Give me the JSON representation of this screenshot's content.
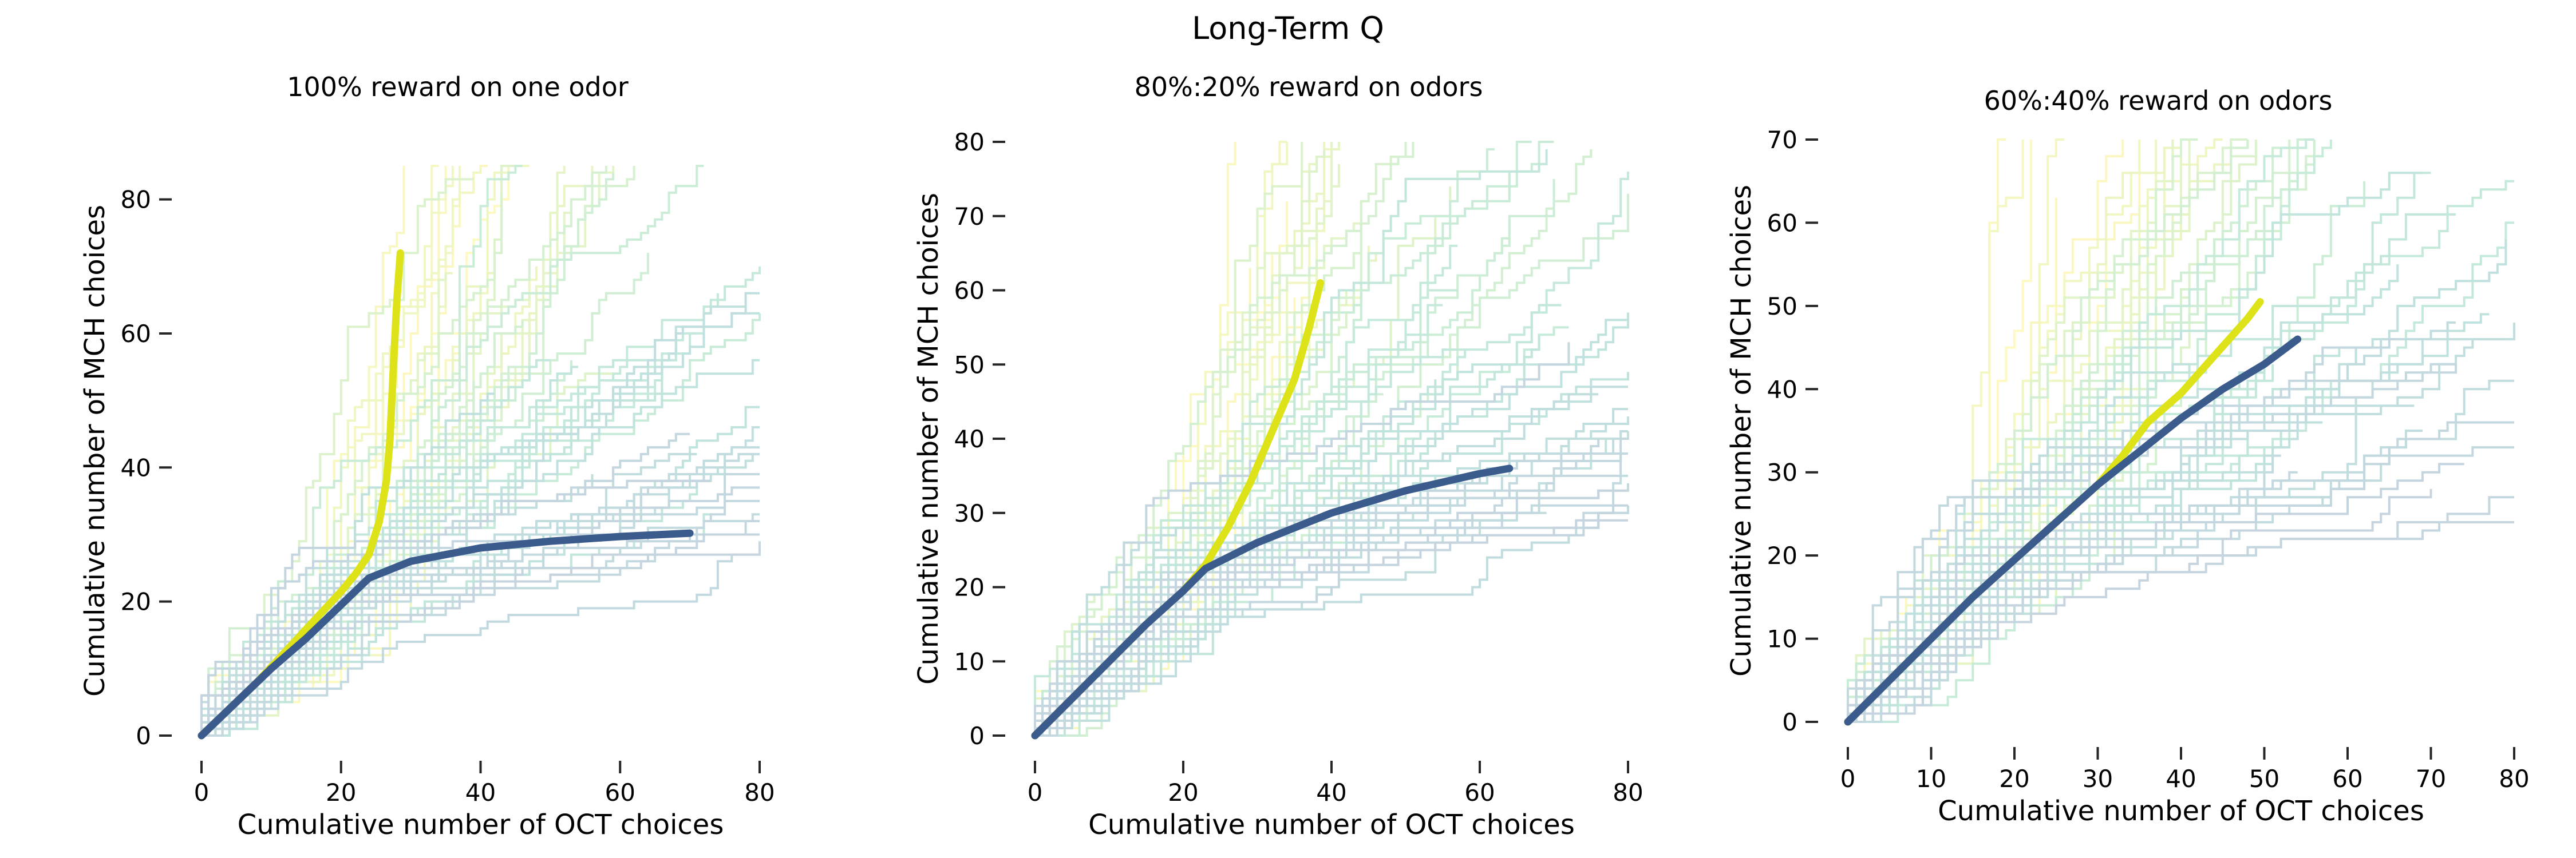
{
  "figure": {
    "title": "Long-Term Q"
  },
  "colors": {
    "mean_mch": "#dde318",
    "mean_oct": "#3b5b8c",
    "trace_colormap": [
      "#fde725",
      "#b5de2b",
      "#6ece58",
      "#35b779",
      "#1f9e89",
      "#26828e",
      "#31688e"
    ]
  },
  "chart_data": [
    {
      "type": "line",
      "title": "100% reward on one odor",
      "xlabel": "Cumulative number of OCT choices",
      "ylabel": "Cumulative number of MCH choices",
      "xlim": [
        0,
        80
      ],
      "ylim": [
        0,
        85
      ],
      "xticks": [
        0,
        20,
        40,
        60,
        80
      ],
      "yticks": [
        0,
        20,
        40,
        60,
        80
      ],
      "grid": false,
      "series": [
        {
          "role": "mean_mch",
          "color": "#dde318",
          "x": [
            0,
            4,
            8,
            12,
            16,
            20,
            22,
            24,
            25.5,
            26.5,
            27,
            27.5,
            28,
            28.5
          ],
          "y": [
            0,
            4,
            8,
            12.5,
            17,
            21.5,
            24,
            27,
            32,
            38,
            44,
            55,
            65,
            72
          ]
        },
        {
          "role": "mean_oct",
          "color": "#3b5b8c",
          "x": [
            0,
            5,
            10,
            15,
            20,
            24,
            30,
            40,
            50,
            60,
            70
          ],
          "y": [
            0,
            5,
            10,
            14.5,
            19.5,
            23.5,
            26,
            28,
            29,
            29.7,
            30.2
          ]
        }
      ],
      "trace_envelope": {
        "mch_max_y": 86,
        "mch_max_x": 15,
        "oct_max_x": 80,
        "oct_max_y": 19
      }
    },
    {
      "type": "line",
      "title": "80%:20% reward on odors",
      "xlabel": "Cumulative number of OCT choices",
      "ylabel": "Cumulative number of MCH choices",
      "xlim": [
        0,
        80
      ],
      "ylim": [
        0,
        80
      ],
      "xticks": [
        0,
        20,
        40,
        60,
        80
      ],
      "yticks": [
        0,
        10,
        20,
        30,
        40,
        50,
        60,
        70,
        80
      ],
      "grid": false,
      "series": [
        {
          "role": "mean_mch",
          "color": "#dde318",
          "x": [
            0,
            5,
            10,
            15,
            20,
            23,
            26,
            29,
            32,
            35,
            37,
            38.5
          ],
          "y": [
            0,
            5,
            10,
            15,
            19.5,
            23,
            28,
            34,
            41,
            48,
            55,
            61
          ]
        },
        {
          "role": "mean_oct",
          "color": "#3b5b8c",
          "x": [
            0,
            5,
            10,
            15,
            20,
            23,
            30,
            40,
            50,
            60,
            64
          ],
          "y": [
            0,
            5,
            10,
            15,
            19.5,
            22.5,
            26,
            30,
            33,
            35.3,
            36
          ]
        }
      ],
      "trace_envelope": {
        "mch_max_y": 80,
        "mch_max_x": 20,
        "oct_max_x": 80,
        "oct_max_y": 20
      }
    },
    {
      "type": "line",
      "title": "60%:40% reward on odors",
      "xlabel": "Cumulative number of OCT choices",
      "ylabel": "Cumulative number of MCH choices",
      "xlim": [
        0,
        80
      ],
      "ylim": [
        0,
        70
      ],
      "xticks": [
        0,
        10,
        20,
        30,
        40,
        50,
        60,
        70,
        80
      ],
      "yticks": [
        0,
        10,
        20,
        30,
        40,
        50,
        60,
        70
      ],
      "grid": false,
      "series": [
        {
          "role": "mean_mch",
          "color": "#dde318",
          "x": [
            0,
            5,
            10,
            15,
            20,
            25,
            30,
            33,
            36,
            40,
            44,
            48,
            49.5
          ],
          "y": [
            0,
            5,
            10,
            15,
            19.5,
            24,
            28.5,
            32,
            36,
            39.5,
            44,
            48.5,
            50.5
          ]
        },
        {
          "role": "mean_oct",
          "color": "#3b5b8c",
          "x": [
            0,
            5,
            10,
            15,
            20,
            25,
            30,
            35,
            40,
            45,
            50,
            54
          ],
          "y": [
            0,
            5,
            10,
            15,
            19.5,
            24,
            28.5,
            32.5,
            36.5,
            40,
            43,
            46
          ]
        }
      ],
      "trace_envelope": {
        "mch_max_y": 68,
        "mch_max_x": 36,
        "oct_max_x": 80,
        "oct_max_y": 20
      }
    }
  ]
}
